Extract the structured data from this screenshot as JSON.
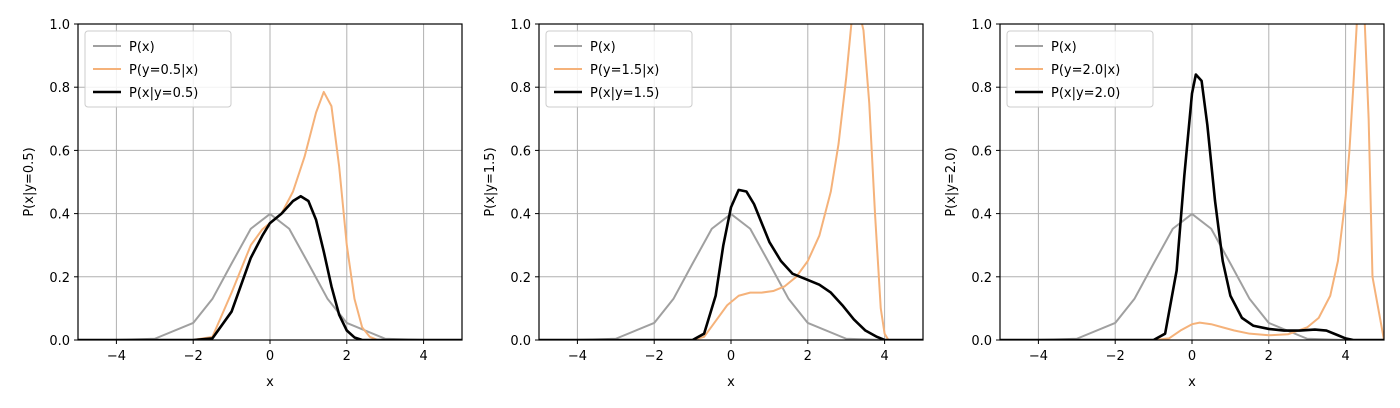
{
  "colors": {
    "prior": "#a0a0a0",
    "likelihood": "#f5b27a",
    "posterior": "#000000",
    "grid": "#b0b0b0"
  },
  "chart_data": [
    {
      "type": "line",
      "xlabel": "x",
      "ylabel": "P(x|y=0.5)",
      "xlim": [
        -5,
        5
      ],
      "ylim": [
        0,
        1.0
      ],
      "xticks": [
        -4,
        -2,
        0,
        2,
        4
      ],
      "yticks": [
        0.0,
        0.2,
        0.4,
        0.6,
        0.8,
        1.0
      ],
      "x_tick_labels": [
        "−4",
        "−2",
        "0",
        "2",
        "4"
      ],
      "y_tick_labels": [
        "0.0",
        "0.2",
        "0.4",
        "0.6",
        "0.8",
        "1.0"
      ],
      "grid": true,
      "legend_position": "top-left",
      "series": [
        {
          "name": "P(x)",
          "role": "prior",
          "x": [
            -5,
            -4,
            -3,
            -2,
            -1.5,
            -1,
            -0.5,
            0,
            0.5,
            1,
            1.5,
            2,
            3,
            4,
            5
          ],
          "y": [
            0,
            0.0001,
            0.004,
            0.054,
            0.13,
            0.242,
            0.352,
            0.399,
            0.352,
            0.242,
            0.13,
            0.054,
            0.004,
            0.0001,
            0
          ]
        },
        {
          "name": "P(y=0.5|x)",
          "role": "likelihood",
          "x": [
            -5,
            -2,
            -1.5,
            -1,
            -0.5,
            -0.2,
            0,
            0.3,
            0.6,
            0.9,
            1.2,
            1.4,
            1.6,
            1.8,
            2,
            2.2,
            2.4,
            2.6,
            2.8,
            5
          ],
          "y": [
            0,
            0,
            0.01,
            0.15,
            0.3,
            0.35,
            0.37,
            0.4,
            0.47,
            0.58,
            0.72,
            0.785,
            0.74,
            0.55,
            0.3,
            0.13,
            0.04,
            0.01,
            0,
            0
          ]
        },
        {
          "name": "P(x|y=0.5)",
          "role": "posterior",
          "x": [
            -5,
            -2,
            -1.5,
            -1,
            -0.5,
            -0.2,
            0,
            0.3,
            0.6,
            0.8,
            1,
            1.2,
            1.4,
            1.6,
            1.8,
            2,
            2.2,
            2.4,
            5
          ],
          "y": [
            0,
            0,
            0.005,
            0.09,
            0.26,
            0.33,
            0.37,
            0.4,
            0.44,
            0.455,
            0.44,
            0.38,
            0.28,
            0.17,
            0.08,
            0.03,
            0.008,
            0,
            0
          ]
        }
      ]
    },
    {
      "type": "line",
      "xlabel": "x",
      "ylabel": "P(x|y=1.5)",
      "xlim": [
        -5,
        5
      ],
      "ylim": [
        0,
        1.0
      ],
      "xticks": [
        -4,
        -2,
        0,
        2,
        4
      ],
      "yticks": [
        0.0,
        0.2,
        0.4,
        0.6,
        0.8,
        1.0
      ],
      "x_tick_labels": [
        "−4",
        "−2",
        "0",
        "2",
        "4"
      ],
      "y_tick_labels": [
        "0.0",
        "0.2",
        "0.4",
        "0.6",
        "0.8",
        "1.0"
      ],
      "grid": true,
      "legend_position": "top-left",
      "series": [
        {
          "name": "P(x)",
          "role": "prior",
          "x": [
            -5,
            -4,
            -3,
            -2,
            -1.5,
            -1,
            -0.5,
            0,
            0.5,
            1,
            1.5,
            2,
            3,
            4,
            5
          ],
          "y": [
            0,
            0.0001,
            0.004,
            0.054,
            0.13,
            0.242,
            0.352,
            0.399,
            0.352,
            0.242,
            0.13,
            0.054,
            0.004,
            0.0001,
            0
          ]
        },
        {
          "name": "P(y=1.5|x)",
          "role": "likelihood",
          "x": [
            -5,
            -1,
            -0.7,
            -0.4,
            -0.1,
            0.2,
            0.5,
            0.8,
            1.1,
            1.4,
            1.7,
            2,
            2.3,
            2.6,
            2.8,
            3.0,
            3.15,
            3.3,
            3.45,
            3.6,
            3.75,
            3.9,
            4.0,
            4.1,
            5
          ],
          "y": [
            0,
            0,
            0.01,
            0.06,
            0.11,
            0.14,
            0.15,
            0.15,
            0.155,
            0.17,
            0.2,
            0.25,
            0.33,
            0.47,
            0.62,
            0.83,
            1.02,
            1.06,
            0.98,
            0.75,
            0.4,
            0.1,
            0.02,
            0,
            0
          ]
        },
        {
          "name": "P(x|y=1.5)",
          "role": "posterior",
          "x": [
            -5,
            -1,
            -0.7,
            -0.4,
            -0.2,
            0,
            0.2,
            0.4,
            0.6,
            0.8,
            1,
            1.3,
            1.6,
            2,
            2.3,
            2.6,
            2.9,
            3.2,
            3.5,
            3.8,
            4,
            5
          ],
          "y": [
            0,
            0,
            0.02,
            0.14,
            0.3,
            0.42,
            0.475,
            0.47,
            0.43,
            0.37,
            0.31,
            0.25,
            0.21,
            0.19,
            0.175,
            0.15,
            0.11,
            0.065,
            0.03,
            0.01,
            0,
            0
          ]
        }
      ]
    },
    {
      "type": "line",
      "xlabel": "x",
      "ylabel": "P(x|y=2.0)",
      "xlim": [
        -5,
        5
      ],
      "ylim": [
        0,
        1.0
      ],
      "xticks": [
        -4,
        -2,
        0,
        2,
        4
      ],
      "yticks": [
        0.0,
        0.2,
        0.4,
        0.6,
        0.8,
        1.0
      ],
      "x_tick_labels": [
        "−4",
        "−2",
        "0",
        "2",
        "4"
      ],
      "y_tick_labels": [
        "0.0",
        "0.2",
        "0.4",
        "0.6",
        "0.8",
        "1.0"
      ],
      "grid": true,
      "legend_position": "top-left",
      "series": [
        {
          "name": "P(x)",
          "role": "prior",
          "x": [
            -5,
            -4,
            -3,
            -2,
            -1.5,
            -1,
            -0.5,
            0,
            0.5,
            1,
            1.5,
            2,
            3,
            4,
            5
          ],
          "y": [
            0,
            0.0001,
            0.004,
            0.054,
            0.13,
            0.242,
            0.352,
            0.399,
            0.352,
            0.242,
            0.13,
            0.054,
            0.004,
            0.0001,
            0
          ]
        },
        {
          "name": "P(y=2.0|x)",
          "role": "likelihood",
          "x": [
            -5,
            -1,
            -0.6,
            -0.3,
            0,
            0.2,
            0.5,
            0.8,
            1.1,
            1.5,
            2,
            2.5,
            3,
            3.3,
            3.6,
            3.8,
            4.0,
            4.1,
            4.2,
            4.3,
            4.4,
            4.5,
            4.6,
            4.7,
            5
          ],
          "y": [
            0,
            0,
            0.005,
            0.03,
            0.05,
            0.055,
            0.05,
            0.04,
            0.03,
            0.02,
            0.015,
            0.018,
            0.04,
            0.07,
            0.14,
            0.25,
            0.45,
            0.6,
            0.8,
            1.02,
            1.08,
            1.0,
            0.7,
            0.2,
            0
          ]
        },
        {
          "name": "P(x|y=2.0)",
          "role": "posterior",
          "x": [
            -5,
            -1,
            -0.7,
            -0.4,
            -0.2,
            0,
            0.1,
            0.25,
            0.4,
            0.6,
            0.8,
            1,
            1.3,
            1.6,
            2,
            2.4,
            2.8,
            3.2,
            3.5,
            3.8,
            4.0,
            4.2,
            5
          ],
          "y": [
            0,
            0,
            0.02,
            0.22,
            0.52,
            0.78,
            0.84,
            0.82,
            0.68,
            0.44,
            0.25,
            0.14,
            0.07,
            0.045,
            0.035,
            0.03,
            0.03,
            0.033,
            0.03,
            0.015,
            0.005,
            0,
            0
          ]
        }
      ]
    }
  ]
}
